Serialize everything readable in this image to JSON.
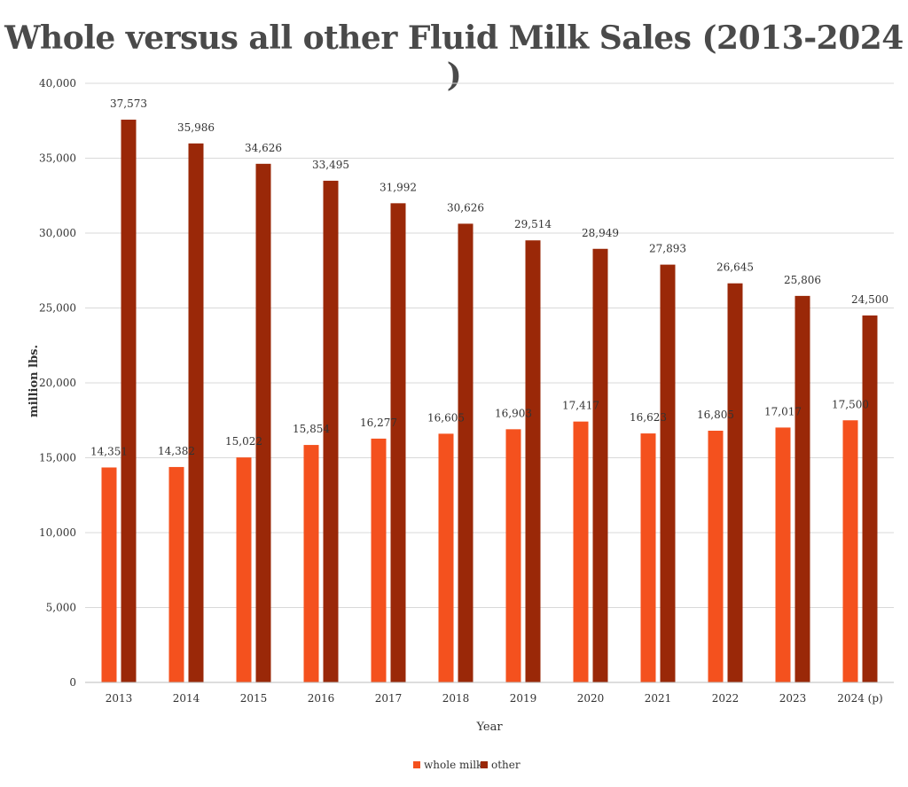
{
  "chart_data": {
    "type": "bar",
    "title": "Whole versus all other Fluid Milk Sales (2013-2024 )",
    "xlabel": "Year",
    "ylabel": "million lbs.",
    "ylim": [
      0,
      40000
    ],
    "yticks": [
      0,
      5000,
      10000,
      15000,
      20000,
      25000,
      30000,
      35000,
      40000
    ],
    "ytick_labels": [
      "0",
      "5,000",
      "10,000",
      "15,000",
      "20,000",
      "25,000",
      "30,000",
      "35,000",
      "40,000"
    ],
    "categories": [
      "2013",
      "2014",
      "2015",
      "2016",
      "2017",
      "2018",
      "2019",
      "2020",
      "2021",
      "2022",
      "2023",
      "2024 (p)"
    ],
    "series": [
      {
        "name": "whole milk",
        "color": "#f4511e",
        "values": [
          14351,
          14382,
          15022,
          15854,
          16277,
          16605,
          16903,
          17417,
          16623,
          16805,
          17017,
          17500
        ],
        "labels": [
          "14,351",
          "14,382",
          "15,022",
          "15,854",
          "16,277",
          "16,605",
          "16,903",
          "17,417",
          "16,623",
          "16,805",
          "17,017",
          "17,500"
        ]
      },
      {
        "name": "other",
        "color": "#9a2808",
        "values": [
          37573,
          35986,
          34626,
          33495,
          31992,
          30626,
          29514,
          28949,
          27893,
          26645,
          25806,
          24500
        ],
        "labels": [
          "37,573",
          "35,986",
          "34,626",
          "33,495",
          "31,992",
          "30,626",
          "29,514",
          "28,949",
          "27,893",
          "26,645",
          "25,806",
          "24,500"
        ]
      }
    ],
    "grid": true,
    "legend": "bottom-center"
  }
}
